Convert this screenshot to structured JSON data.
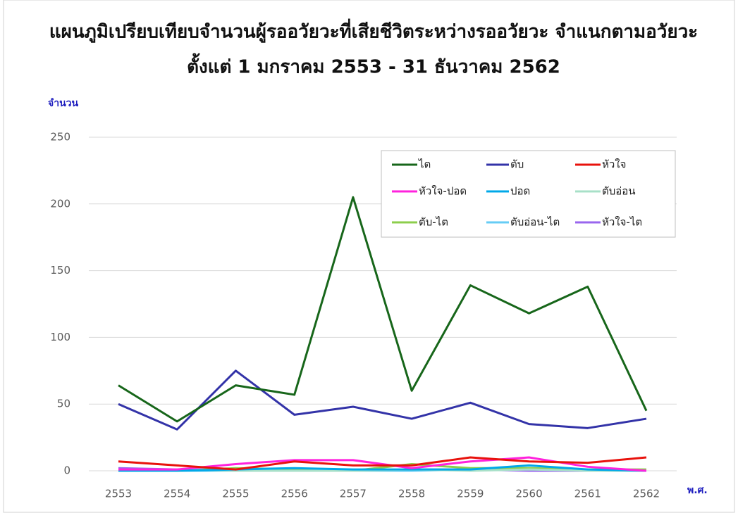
{
  "chart_data": {
    "type": "line",
    "title": "แผนภูมิเปรียบเทียบจำนวนผู้รออวัยวะที่เสียชีวิตระหว่างรออวัยวะ จำแนกตามอวัยวะ",
    "subtitle": "ตั้งแต่ 1 มกราคม 2553 - 31 ธันวาคม 2562",
    "y_label": "จำนวน",
    "x_label": "พ.ศ.",
    "categories": [
      "2553",
      "2554",
      "2555",
      "2556",
      "2557",
      "2558",
      "2559",
      "2560",
      "2561",
      "2562"
    ],
    "ylim": [
      0,
      250
    ],
    "yticks": [
      0,
      50,
      100,
      150,
      200,
      250
    ],
    "grid": true,
    "series": [
      {
        "name": "ไต",
        "color": "#17661a",
        "values": [
          64,
          37,
          64,
          57,
          205,
          60,
          139,
          118,
          138,
          45
        ]
      },
      {
        "name": "ตับ",
        "color": "#3333a8",
        "values": [
          50,
          31,
          75,
          42,
          48,
          39,
          51,
          35,
          32,
          39
        ]
      },
      {
        "name": "หัวใจ",
        "color": "#e8120c",
        "values": [
          7,
          4,
          1,
          7,
          4,
          4,
          10,
          7,
          6,
          10
        ]
      },
      {
        "name": "หัวใจ-ปอด",
        "color": "#ff22dd",
        "values": [
          1,
          1,
          5,
          8,
          8,
          2,
          7,
          10,
          3,
          0
        ]
      },
      {
        "name": "ปอด",
        "color": "#00a8e8",
        "values": [
          0,
          0,
          1,
          2,
          1,
          1,
          1,
          4,
          1,
          0
        ]
      },
      {
        "name": "ตับอ่อน",
        "color": "#a8e0c8",
        "values": [
          0,
          1,
          0,
          0,
          0,
          1,
          0,
          1,
          0,
          0
        ]
      },
      {
        "name": "ตับ-ไต",
        "color": "#8cce4c",
        "values": [
          0,
          0,
          2,
          1,
          0,
          5,
          2,
          2,
          1,
          1
        ]
      },
      {
        "name": "ตับอ่อน-ไต",
        "color": "#66ccf5",
        "values": [
          0,
          0,
          0,
          1,
          0,
          0,
          1,
          2,
          0,
          0
        ]
      },
      {
        "name": "หัวใจ-ไต",
        "color": "#9966ee",
        "values": [
          2,
          1,
          1,
          1,
          0,
          1,
          1,
          0,
          0,
          0
        ]
      }
    ]
  }
}
